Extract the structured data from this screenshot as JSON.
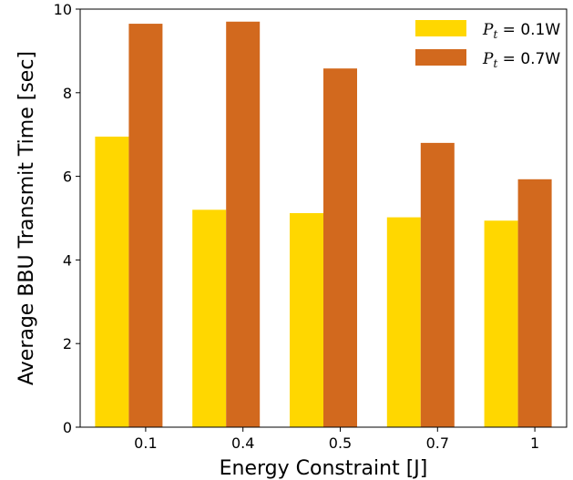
{
  "chart_data": {
    "type": "bar",
    "xlabel": "Energy Constraint [J]",
    "ylabel": "Average BBU Transmit Time [sec]",
    "categories": [
      "0.1",
      "0.4",
      "0.5",
      "0.7",
      "1"
    ],
    "ylim": [
      0,
      10
    ],
    "yticks": [
      "0",
      "2",
      "4",
      "6",
      "8",
      "10"
    ],
    "grid": false,
    "legend_position": "top-right",
    "series": [
      {
        "name": "Pt = 0.1W",
        "legend": {
          "symbol": "P",
          "subscript": "t",
          "rest": " = 0.1W"
        },
        "color": "#FFD700",
        "values": [
          6.95,
          5.2,
          5.12,
          5.02,
          4.94
        ]
      },
      {
        "name": "Pt = 0.7W",
        "legend": {
          "symbol": "P",
          "subscript": "t",
          "rest": " = 0.7W"
        },
        "color": "#D2691E",
        "values": [
          9.65,
          9.7,
          8.58,
          6.8,
          5.93
        ]
      }
    ]
  }
}
